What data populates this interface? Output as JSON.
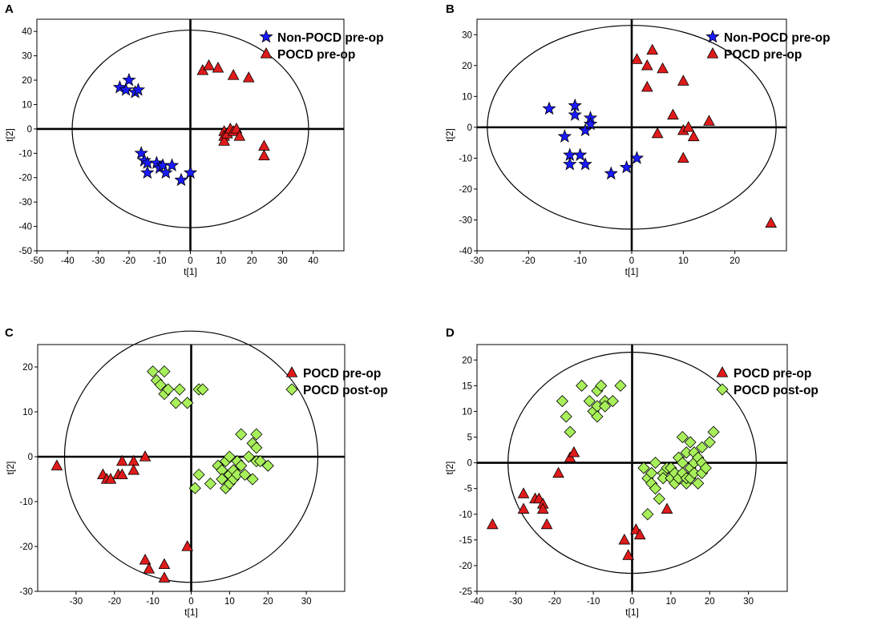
{
  "colors": {
    "non_pocd_pre": "#1a1aff",
    "pocd_pre": "#e01b1b",
    "pocd_post": "#a8f05a",
    "axes": "#000000"
  },
  "chart_data": [
    {
      "panel": "A",
      "type": "scatter",
      "xlabel": "t[1]",
      "ylabel": "t[2]",
      "xlim": [
        -50,
        50
      ],
      "ylim": [
        -50,
        45
      ],
      "xticks": [
        -50,
        -40,
        -30,
        -20,
        -10,
        0,
        10,
        20,
        30,
        40
      ],
      "yticks": [
        -50,
        -40,
        -30,
        -20,
        -10,
        0,
        10,
        20,
        30,
        40
      ],
      "ellipse": {
        "rx": 38.5,
        "ry": 40.5
      },
      "legend_position": "top-right",
      "series": [
        {
          "name": "Non-POCD pre-op",
          "marker": "star",
          "color_key": "non_pocd_pre",
          "points": [
            [
              -23,
              17
            ],
            [
              -21,
              16
            ],
            [
              -20,
              20
            ],
            [
              -18,
              15
            ],
            [
              -17,
              16
            ],
            [
              -16,
              -10
            ],
            [
              -15,
              -13
            ],
            [
              -14,
              -14
            ],
            [
              -14,
              -18
            ],
            [
              -11,
              -14
            ],
            [
              -10,
              -16
            ],
            [
              -9,
              -15
            ],
            [
              -8,
              -18
            ],
            [
              -6,
              -15
            ],
            [
              -3,
              -21
            ],
            [
              0,
              -18
            ]
          ]
        },
        {
          "name": "POCD pre-op",
          "marker": "triangle",
          "color_key": "pocd_pre",
          "points": [
            [
              4,
              24
            ],
            [
              6,
              26
            ],
            [
              9,
              25
            ],
            [
              11,
              -1
            ],
            [
              11,
              -3
            ],
            [
              11,
              -5
            ],
            [
              12,
              -2
            ],
            [
              13,
              0
            ],
            [
              14,
              -1
            ],
            [
              14,
              22
            ],
            [
              15,
              0
            ],
            [
              16,
              -3
            ],
            [
              19,
              21
            ],
            [
              24,
              -7
            ],
            [
              24,
              -11
            ]
          ]
        }
      ]
    },
    {
      "panel": "B",
      "type": "scatter",
      "xlabel": "t[1]",
      "ylabel": "t[2]",
      "xlim": [
        -30,
        30
      ],
      "ylim": [
        -40,
        35
      ],
      "xticks": [
        -30,
        -20,
        -10,
        0,
        10,
        20
      ],
      "yticks": [
        -40,
        -30,
        -20,
        -10,
        0,
        10,
        20,
        30
      ],
      "ellipse": {
        "rx": 28,
        "ry": 33
      },
      "legend_position": "top-right",
      "series": [
        {
          "name": "Non-POCD pre-op",
          "marker": "star",
          "color_key": "non_pocd_pre",
          "points": [
            [
              -16,
              6
            ],
            [
              -13,
              -3
            ],
            [
              -12,
              -9
            ],
            [
              -12,
              -12
            ],
            [
              -11,
              7
            ],
            [
              -11,
              4
            ],
            [
              -10,
              -9
            ],
            [
              -9,
              -1
            ],
            [
              -9,
              -12
            ],
            [
              -8,
              3
            ],
            [
              -8,
              1
            ],
            [
              -4,
              -15
            ],
            [
              -1,
              -13
            ],
            [
              1,
              -10
            ]
          ]
        },
        {
          "name": "POCD pre-op",
          "marker": "triangle",
          "color_key": "pocd_pre",
          "points": [
            [
              1,
              22
            ],
            [
              3,
              20
            ],
            [
              3,
              13
            ],
            [
              4,
              25
            ],
            [
              5,
              -2
            ],
            [
              6,
              19
            ],
            [
              8,
              4
            ],
            [
              10,
              15
            ],
            [
              10,
              -1
            ],
            [
              10,
              -10
            ],
            [
              11,
              0
            ],
            [
              12,
              -3
            ],
            [
              15,
              2
            ],
            [
              27,
              -31
            ]
          ]
        }
      ]
    },
    {
      "panel": "C",
      "type": "scatter",
      "xlabel": "t[1]",
      "ylabel": "t[2]",
      "xlim": [
        -40,
        40
      ],
      "ylim": [
        -30,
        25
      ],
      "xticks": [
        -30,
        -20,
        -10,
        0,
        10,
        20,
        30
      ],
      "yticks": [
        -30,
        -20,
        -10,
        0,
        10,
        20
      ],
      "ellipse": {
        "rx": 33,
        "ry": 28
      },
      "legend_position": "top-right",
      "series": [
        {
          "name": "POCD pre-op",
          "marker": "triangle",
          "color_key": "pocd_pre",
          "points": [
            [
              -35,
              -2
            ],
            [
              -23,
              -4
            ],
            [
              -22,
              -5
            ],
            [
              -21,
              -5
            ],
            [
              -19,
              -4
            ],
            [
              -18,
              -1
            ],
            [
              -18,
              -4
            ],
            [
              -15,
              -1
            ],
            [
              -15,
              -3
            ],
            [
              -12,
              0
            ],
            [
              -12,
              -23
            ],
            [
              -11,
              -25
            ],
            [
              -7,
              -24
            ],
            [
              -7,
              -27
            ],
            [
              -1,
              -20
            ]
          ]
        },
        {
          "name": "POCD post-op",
          "marker": "diamond",
          "color_key": "pocd_post",
          "points": [
            [
              -10,
              19
            ],
            [
              -9,
              17
            ],
            [
              -8,
              16
            ],
            [
              -7,
              19
            ],
            [
              -7,
              14
            ],
            [
              -6,
              15
            ],
            [
              -4,
              12
            ],
            [
              -3,
              15
            ],
            [
              -1,
              12
            ],
            [
              1,
              -7
            ],
            [
              2,
              -4
            ],
            [
              2,
              15
            ],
            [
              3,
              15
            ],
            [
              5,
              -6
            ],
            [
              7,
              -2
            ],
            [
              8,
              -3
            ],
            [
              8,
              -5
            ],
            [
              9,
              -7
            ],
            [
              9,
              -1
            ],
            [
              10,
              -4
            ],
            [
              10,
              0
            ],
            [
              10,
              -6
            ],
            [
              11,
              -3
            ],
            [
              11,
              -5
            ],
            [
              12,
              -1
            ],
            [
              12,
              -4
            ],
            [
              13,
              5
            ],
            [
              13,
              -2
            ],
            [
              14,
              -4
            ],
            [
              15,
              0
            ],
            [
              16,
              3
            ],
            [
              16,
              -5
            ],
            [
              17,
              5
            ],
            [
              17,
              2
            ],
            [
              17,
              -1
            ],
            [
              18,
              -1
            ],
            [
              20,
              -2
            ]
          ]
        }
      ]
    },
    {
      "panel": "D",
      "type": "scatter",
      "xlabel": "t[1]",
      "ylabel": "t[2]",
      "xlim": [
        -40,
        40
      ],
      "ylim": [
        -25,
        23
      ],
      "xticks": [
        -40,
        -30,
        -20,
        -10,
        0,
        10,
        20,
        30
      ],
      "yticks": [
        -25,
        -20,
        -15,
        -10,
        -5,
        0,
        5,
        10,
        15,
        20
      ],
      "ellipse": {
        "rx": 32,
        "ry": 21.5
      },
      "legend_position": "top-right",
      "series": [
        {
          "name": "POCD pre-op",
          "marker": "triangle",
          "color_key": "pocd_pre",
          "points": [
            [
              -36,
              -12
            ],
            [
              -28,
              -6
            ],
            [
              -28,
              -9
            ],
            [
              -25,
              -7
            ],
            [
              -24,
              -7
            ],
            [
              -23,
              -8
            ],
            [
              -23,
              -9
            ],
            [
              -22,
              -12
            ],
            [
              -19,
              -2
            ],
            [
              -16,
              1
            ],
            [
              -15,
              2
            ],
            [
              -2,
              -15
            ],
            [
              -1,
              -18
            ],
            [
              1,
              -13
            ],
            [
              2,
              -14
            ],
            [
              9,
              -9
            ]
          ]
        },
        {
          "name": "POCD post-op",
          "marker": "diamond",
          "color_key": "pocd_post",
          "points": [
            [
              -18,
              12
            ],
            [
              -17,
              9
            ],
            [
              -16,
              6
            ],
            [
              -13,
              15
            ],
            [
              -11,
              12
            ],
            [
              -10,
              10
            ],
            [
              -9,
              14
            ],
            [
              -9,
              11
            ],
            [
              -9,
              9
            ],
            [
              -8,
              15
            ],
            [
              -7,
              12
            ],
            [
              -7,
              11
            ],
            [
              -5,
              12
            ],
            [
              -3,
              15
            ],
            [
              3,
              -1
            ],
            [
              4,
              -3
            ],
            [
              5,
              -2
            ],
            [
              5,
              -4
            ],
            [
              6,
              -5
            ],
            [
              6,
              0
            ],
            [
              7,
              -7
            ],
            [
              8,
              -2
            ],
            [
              8,
              -3
            ],
            [
              9,
              -1
            ],
            [
              10,
              -3
            ],
            [
              10,
              -1
            ],
            [
              11,
              -4
            ],
            [
              11,
              -2
            ],
            [
              12,
              1
            ],
            [
              12,
              -3
            ],
            [
              13,
              5
            ],
            [
              13,
              0
            ],
            [
              13,
              -2
            ],
            [
              14,
              -4
            ],
            [
              14,
              2
            ],
            [
              14,
              -3
            ],
            [
              15,
              -1
            ],
            [
              15,
              4
            ],
            [
              15,
              -3
            ],
            [
              16,
              2
            ],
            [
              16,
              0
            ],
            [
              16,
              -2
            ],
            [
              17,
              1
            ],
            [
              17,
              -4
            ],
            [
              18,
              0
            ],
            [
              18,
              3
            ],
            [
              18,
              -2
            ],
            [
              19,
              -1
            ],
            [
              20,
              4
            ],
            [
              21,
              6
            ],
            [
              4,
              -10
            ]
          ]
        }
      ]
    }
  ]
}
